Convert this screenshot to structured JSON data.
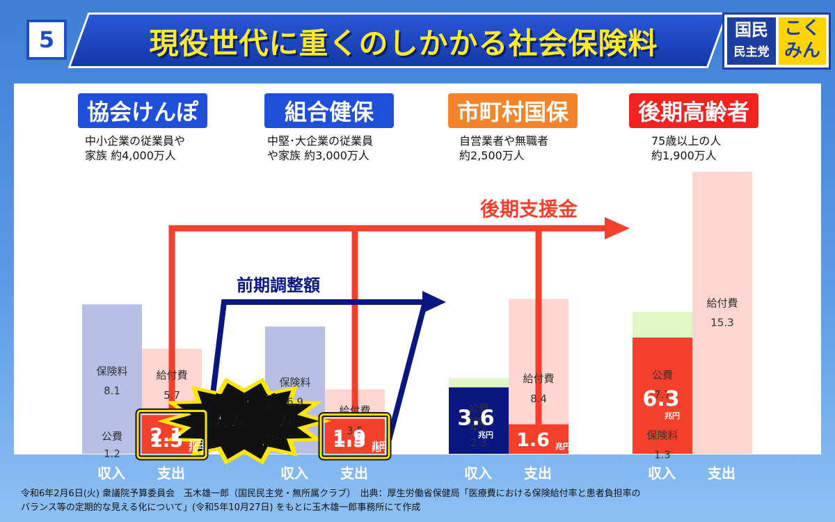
{
  "header": {
    "number": "5",
    "title": "現役世代に重くのしかかる社会保険料"
  },
  "logo": {
    "line1": "国民",
    "line2": "民主党",
    "right1": "こく",
    "right2": "みん"
  },
  "colors": {
    "income_premium": "#b7bfe4",
    "public": "#e1f6c6",
    "expense": "#fdd5d1",
    "red": "#f2402b",
    "navy": "#0a1780",
    "orange": "#f4842a",
    "blue_label": "#1f4fd6"
  },
  "categories": [
    {
      "label": "協会けんぽ",
      "desc1": "中小企業の従業員や",
      "desc2": "家族 約4,000万人"
    },
    {
      "label": "組合健保",
      "desc1": "中堅･大企業の従業員",
      "desc2": "や家族 約3,000万人"
    },
    {
      "label": "市町村国保",
      "desc1": "自営業者や無職者",
      "desc2": "約2,500万人"
    },
    {
      "label": "後期高齢者",
      "desc1": "75歳以上の人",
      "desc2": "約1,900万人"
    }
  ],
  "axis_labels": {
    "income": "収入",
    "expense": "支出"
  },
  "flows": {
    "kouki": "後期支援金",
    "zenki": "前期調整額"
  },
  "burst": {
    "l1": "保険料が",
    "l2": "他人の赤字の",
    "l3": "穴埋めに"
  },
  "unit": "兆円",
  "chart_data": {
    "type": "bar",
    "title": "現役世代に重くのしかかる社会保険料",
    "x_categories": [
      "協会けんぽ",
      "組合健保",
      "市町村国保",
      "後期高齢者"
    ],
    "bars": [
      {
        "group": "協会けんぽ",
        "kind": "収入",
        "segments": [
          {
            "name": "公費",
            "value": 1.2,
            "label": "1.2"
          },
          {
            "name": "保険料",
            "value": 8.1,
            "label": "8.1"
          }
        ]
      },
      {
        "group": "協会けんぽ",
        "kind": "支出",
        "segments": [
          {
            "name": "給付費",
            "value": 5.7,
            "label": "5.7"
          },
          {
            "name": "前期調整額",
            "value": 1.5,
            "label": "1.5"
          },
          {
            "name": "後期支援金",
            "value": 2.1,
            "label": "2.1"
          }
        ]
      },
      {
        "group": "組合健保",
        "kind": "収入",
        "segments": [
          {
            "name": "保険料",
            "value": 6.9,
            "label": "6.9"
          }
        ]
      },
      {
        "group": "組合健保",
        "kind": "支出",
        "segments": [
          {
            "name": "給付費",
            "value": 3.5,
            "label": "3.5"
          },
          {
            "name": "前期調整額",
            "value": 1.5,
            "label": "1.5"
          },
          {
            "name": "後期支援金",
            "value": 1.9,
            "label": "1.9"
          }
        ]
      },
      {
        "group": "市町村国保",
        "kind": "収入",
        "segments": [
          {
            "name": "公費",
            "value": 4.1,
            "label": "4.1"
          },
          {
            "name": "保険料",
            "value": 2.3,
            "label": "2.3"
          },
          {
            "name": "前期調整額",
            "value": 3.6,
            "label": "3.6"
          }
        ]
      },
      {
        "group": "市町村国保",
        "kind": "支出",
        "segments": [
          {
            "name": "給付費",
            "value": 8.4,
            "label": "8.4"
          },
          {
            "name": "後期支援金",
            "value": 1.6,
            "label": "1.6"
          }
        ]
      },
      {
        "group": "後期高齢者",
        "kind": "収入",
        "segments": [
          {
            "name": "公費",
            "value": 7.7,
            "label": "7.7"
          },
          {
            "name": "保険料",
            "value": 1.3,
            "label": "1.3"
          },
          {
            "name": "後期支援金",
            "value": 6.3,
            "label": "6.3"
          }
        ]
      },
      {
        "group": "後期高齢者",
        "kind": "支出",
        "segments": [
          {
            "name": "給付費",
            "value": 15.3,
            "label": "15.3"
          }
        ]
      }
    ]
  },
  "footer": {
    "line1": "令和6年2月6日(火) 衆議院予算委員会　玉木雄一郎（国民民主党・無所属クラブ）　出典：厚生労働省保健局「医療費における保険給付率と患者負担率の",
    "line2": "バランス等の定期的な見える化について」(令和5年10月27日) をもとに玉木雄一郎事務所にて作成"
  }
}
